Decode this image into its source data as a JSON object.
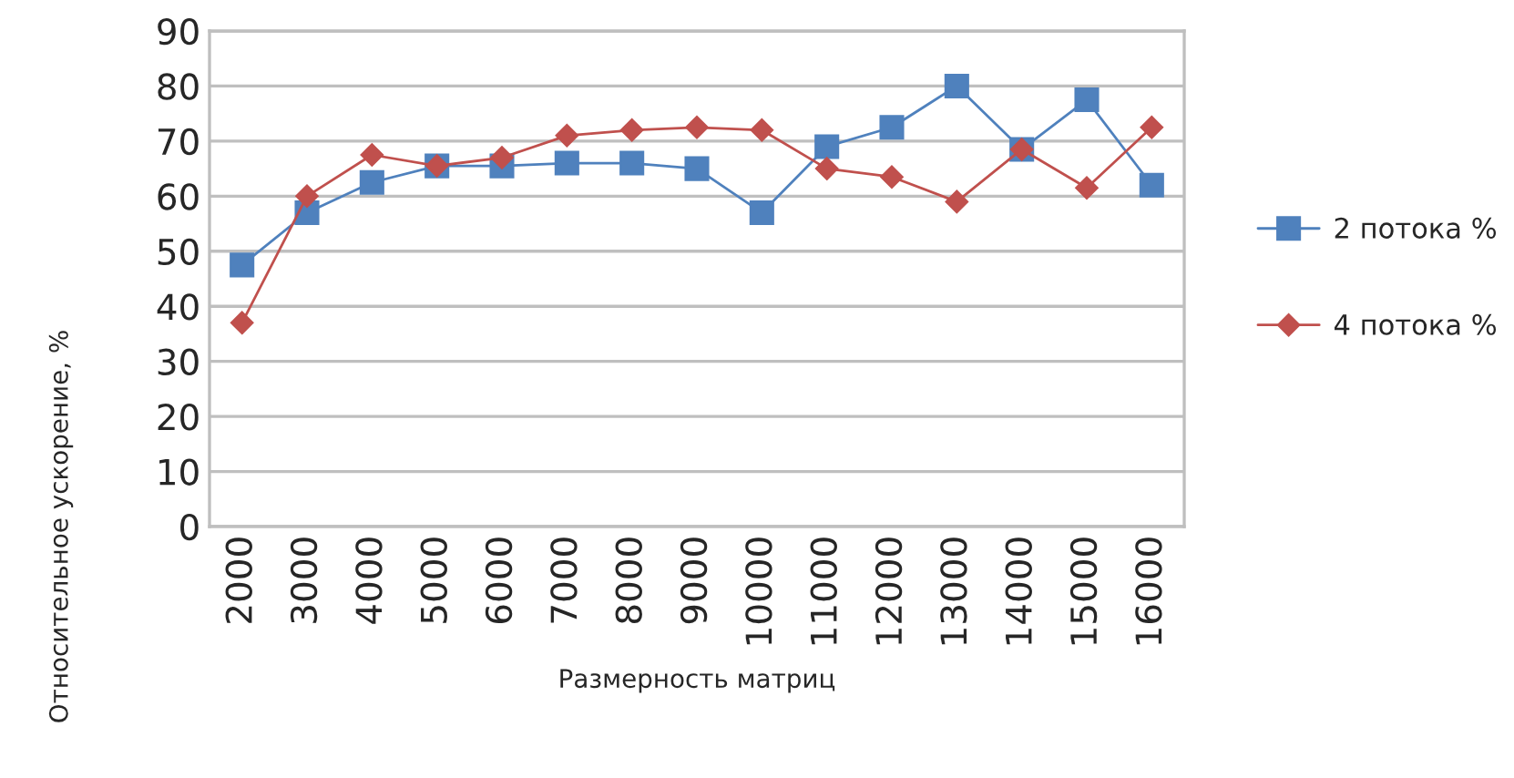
{
  "chart_data": {
    "type": "line",
    "xlabel": "Размерность матриц",
    "ylabel": "Относительное ускорение, %",
    "categories": [
      "2000",
      "3000",
      "4000",
      "5000",
      "6000",
      "7000",
      "8000",
      "9000",
      "10000",
      "11000",
      "12000",
      "13000",
      "14000",
      "15000",
      "16000"
    ],
    "series": [
      {
        "name": "2 потока %",
        "color": "#4f81bd",
        "marker": "square",
        "values": [
          47.5,
          57,
          62.5,
          65.5,
          65.5,
          66,
          66,
          65,
          57,
          69,
          72.5,
          80,
          68.5,
          77.5,
          62
        ]
      },
      {
        "name": "4 потока %",
        "color": "#c0504d",
        "marker": "diamond",
        "values": [
          37,
          60,
          67.5,
          65.5,
          67,
          71,
          72,
          72.5,
          72,
          65,
          63.5,
          59,
          68.5,
          61.5,
          72.5
        ]
      }
    ],
    "ylim": [
      0,
      90
    ],
    "yticks": [
      0,
      10,
      20,
      30,
      40,
      50,
      60,
      70,
      80,
      90
    ],
    "grid": "y",
    "legend": "right"
  }
}
